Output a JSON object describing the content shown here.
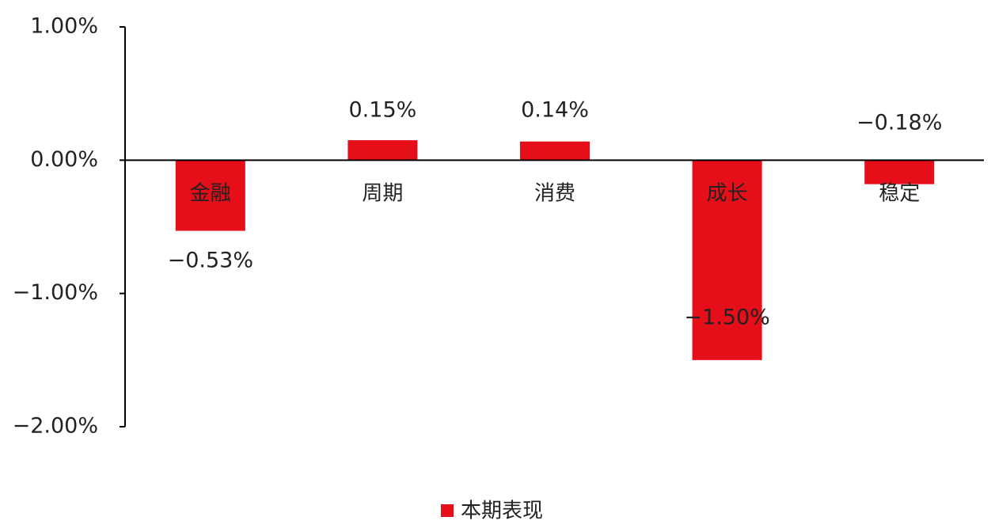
{
  "chart_data": {
    "type": "bar",
    "categories": [
      "金融",
      "周期",
      "消费",
      "成长",
      "稳定"
    ],
    "series": [
      {
        "name": "本期表现",
        "color": "#e50e19",
        "values": [
          -0.53,
          0.15,
          0.14,
          -1.5,
          -0.18
        ],
        "value_labels": [
          "−0.53%",
          "0.15%",
          "0.14%",
          "−1.50%",
          "−0.18%"
        ]
      }
    ],
    "ylim": [
      -2,
      1
    ],
    "yticks": [
      {
        "value": 1,
        "label": "1.00%"
      },
      {
        "value": 0,
        "label": "0.00%"
      },
      {
        "value": -1,
        "label": "−1.00%"
      },
      {
        "value": -2,
        "label": "−2.00%"
      }
    ],
    "legend": "bottom"
  }
}
